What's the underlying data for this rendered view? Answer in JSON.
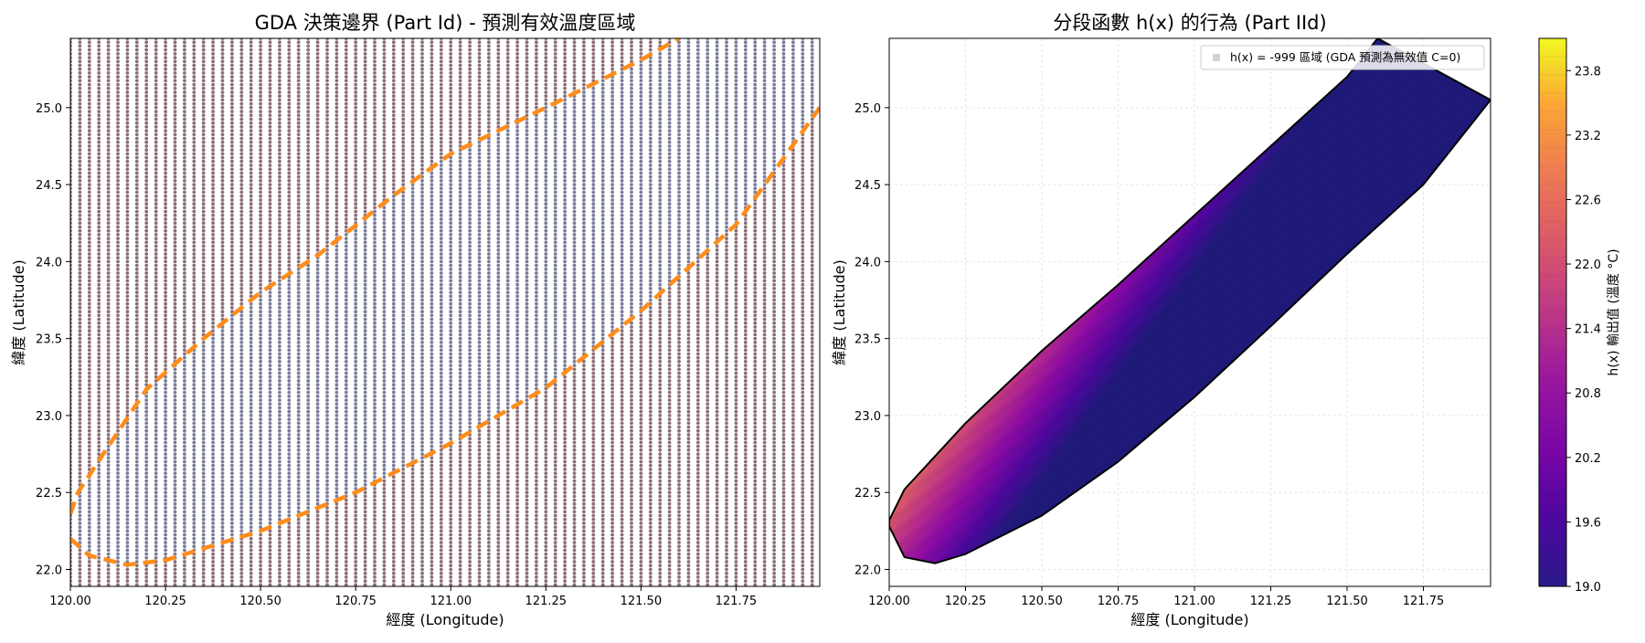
{
  "chart_data": [
    {
      "type": "scatter",
      "title": "GDA 決策邊界 (Part Id) - 預測有效溫度區域",
      "xlabel": "經度 (Longitude)",
      "ylabel": "緯度 (Latitude)",
      "xlim": [
        120.0,
        121.97
      ],
      "ylim": [
        21.89,
        25.45
      ],
      "xticks": [
        "120.00",
        "120.25",
        "120.50",
        "120.75",
        "121.00",
        "121.25",
        "121.50",
        "121.75"
      ],
      "yticks": [
        "22.0",
        "22.5",
        "23.0",
        "23.5",
        "24.0",
        "24.5",
        "25.0"
      ],
      "grid_points": {
        "x_start": 120.0,
        "x_step": 0.025,
        "x_count": 79,
        "y_start": 21.9,
        "y_step": 0.025,
        "y_count": 143
      },
      "point_colors": {
        "inside": "#7b7d9a",
        "outside": "#8b6f7b"
      },
      "decision_boundary": {
        "style": "dashed",
        "color": "#ff8c00",
        "points": [
          [
            120.0,
            22.36
          ],
          [
            120.02,
            22.5
          ],
          [
            120.1,
            22.8
          ],
          [
            120.2,
            23.17
          ],
          [
            120.35,
            23.5
          ],
          [
            120.5,
            23.8
          ],
          [
            120.65,
            24.04
          ],
          [
            120.85,
            24.43
          ],
          [
            121.0,
            24.7
          ],
          [
            121.25,
            25.0
          ],
          [
            121.5,
            25.31
          ],
          [
            121.6,
            25.45
          ]
        ],
        "points_lower": [
          [
            120.0,
            22.2
          ],
          [
            120.05,
            22.09
          ],
          [
            120.15,
            22.03
          ],
          [
            120.25,
            22.06
          ],
          [
            120.5,
            22.25
          ],
          [
            120.75,
            22.5
          ],
          [
            121.0,
            22.82
          ],
          [
            121.25,
            23.18
          ],
          [
            121.5,
            23.68
          ],
          [
            121.75,
            24.24
          ],
          [
            121.97,
            25.0
          ]
        ]
      }
    },
    {
      "type": "heatmap",
      "title": "分段函數 h(x) 的行為 (Part IId)",
      "xlabel": "經度 (Longitude)",
      "ylabel": "緯度 (Latitude)",
      "xlim": [
        120.0,
        121.97
      ],
      "ylim": [
        21.89,
        25.45
      ],
      "xticks": [
        "120.00",
        "120.25",
        "120.50",
        "120.75",
        "121.00",
        "121.25",
        "121.50",
        "121.75"
      ],
      "yticks": [
        "22.0",
        "22.5",
        "23.0",
        "23.5",
        "24.0",
        "24.5",
        "25.0"
      ],
      "legend": {
        "position": "top-right",
        "label": "h(x) = -999 區域 (GDA 預測為無效值 C=0)",
        "marker_color": "#d3d3d3"
      },
      "colorbar": {
        "label": "h(x) 輸出值 (溫度 °C)",
        "min": 19.0,
        "max": 24.1,
        "ticks": [
          "19.0",
          "19.6",
          "20.2",
          "20.8",
          "21.4",
          "22.0",
          "22.6",
          "23.2",
          "23.8"
        ],
        "colormap": "plasma"
      },
      "ellipse_boundary": {
        "points": [
          [
            120.0,
            22.32
          ],
          [
            120.05,
            22.52
          ],
          [
            120.25,
            22.95
          ],
          [
            120.5,
            23.42
          ],
          [
            120.75,
            23.85
          ],
          [
            121.0,
            24.3
          ],
          [
            121.25,
            24.75
          ],
          [
            121.5,
            25.2
          ],
          [
            121.6,
            25.45
          ],
          [
            121.97,
            25.05
          ],
          [
            121.75,
            24.5
          ],
          [
            121.5,
            24.05
          ],
          [
            121.25,
            23.58
          ],
          [
            121.0,
            23.12
          ],
          [
            120.75,
            22.7
          ],
          [
            120.5,
            22.35
          ],
          [
            120.25,
            22.1
          ],
          [
            120.15,
            22.04
          ],
          [
            120.05,
            22.08
          ],
          [
            120.0,
            22.28
          ]
        ]
      }
    }
  ]
}
